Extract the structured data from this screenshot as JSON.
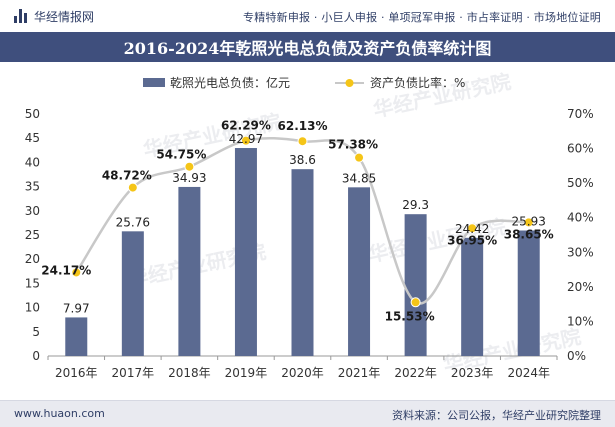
{
  "header": {
    "site_name": "华经情报网",
    "links": "专精特新申报 · 小巨人申报 · 单项冠军申报 · 市占率证明 · 市场地位证明"
  },
  "title": "2016-2024年乾照光电总负债及资产负债率统计图",
  "footer": {
    "url": "www.huaon.com",
    "source": "资料来源：公司公报，华经产业研究院整理"
  },
  "watermarks": [
    "华经产业研究院",
    "华经产业研究院",
    "华经产业研究院",
    "华经产业研究院",
    "华经产业研究院"
  ],
  "colors": {
    "bar": "#5b6a91",
    "line": "#c8c8c8",
    "marker": "#f5c518",
    "title_bg": "#3f4f7d",
    "text": "#333333"
  },
  "chart_data": {
    "type": "bar",
    "categories": [
      "2016年",
      "2017年",
      "2018年",
      "2019年",
      "2020年",
      "2021年",
      "2022年",
      "2023年",
      "2024年"
    ],
    "series": [
      {
        "name": "乾照光电总负债：亿元",
        "type": "bar",
        "axis": "left",
        "values": [
          7.97,
          25.76,
          34.93,
          42.97,
          38.6,
          34.85,
          29.3,
          24.42,
          25.93
        ],
        "labels": [
          "7.97",
          "25.76",
          "34.93",
          "42.97",
          "38.6",
          "34.85",
          "29.3",
          "24.42",
          "25.93"
        ]
      },
      {
        "name": "资产负债比率：%",
        "type": "line",
        "axis": "right",
        "values": [
          24.17,
          48.72,
          54.75,
          62.29,
          62.13,
          57.38,
          15.53,
          36.95,
          38.65
        ],
        "labels": [
          "24.17%",
          "48.72%",
          "54.75%",
          "62.29%",
          "62.13%",
          "57.38%",
          "15.53%",
          "36.95%",
          "38.65%"
        ]
      }
    ],
    "y_left": {
      "min": 0,
      "max": 50,
      "ticks": [
        "0",
        "5",
        "10",
        "15",
        "20",
        "25",
        "30",
        "35",
        "40",
        "45",
        "50"
      ]
    },
    "y_right": {
      "min": 0,
      "max": 70,
      "ticks": [
        "0%",
        "10%",
        "20%",
        "30%",
        "40%",
        "50%",
        "60%",
        "70%"
      ]
    },
    "legend_position": "top-center",
    "grid": false
  }
}
